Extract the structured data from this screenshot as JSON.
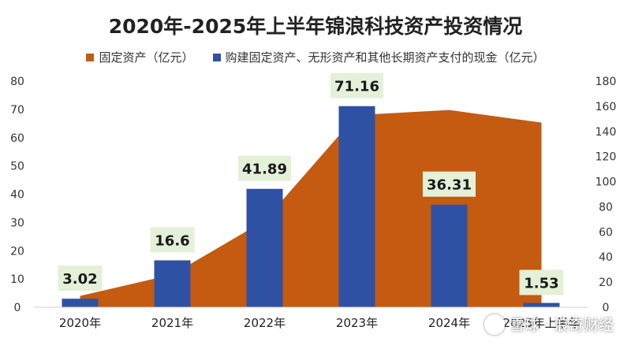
{
  "chart_data": {
    "type": "bar+area",
    "title": "2020年-2025年上半年锦浪科技资产投资情况",
    "categories": [
      "2020年",
      "2021年",
      "2022年",
      "2023年",
      "2024年",
      "2025年上半年"
    ],
    "series": [
      {
        "name": "固定资产（亿元）",
        "type": "area",
        "axis": "right",
        "color": "#C55A11",
        "values": [
          9,
          26,
          69,
          153,
          157,
          147
        ]
      },
      {
        "name": "购建固定资产、无形资产和其他长期资产支付的现金（亿元）",
        "type": "bar",
        "axis": "left",
        "color": "#2F51A3",
        "values": [
          3.02,
          16.6,
          41.89,
          71.16,
          36.31,
          1.53
        ],
        "data_labels": [
          "3.02",
          "16.6",
          "41.89",
          "71.16",
          "36.31",
          "1.53"
        ]
      }
    ],
    "y_left": {
      "ylim": [
        0,
        80
      ],
      "ticks": [
        0,
        10,
        20,
        30,
        40,
        50,
        60,
        70,
        80
      ]
    },
    "y_right": {
      "ylim": [
        0,
        180
      ],
      "ticks": [
        0,
        20,
        40,
        60,
        80,
        100,
        120,
        140,
        160,
        180
      ]
    },
    "grid": false,
    "legend_position": "top"
  },
  "watermark": {
    "text": "雪球 · 浪奇财经"
  }
}
